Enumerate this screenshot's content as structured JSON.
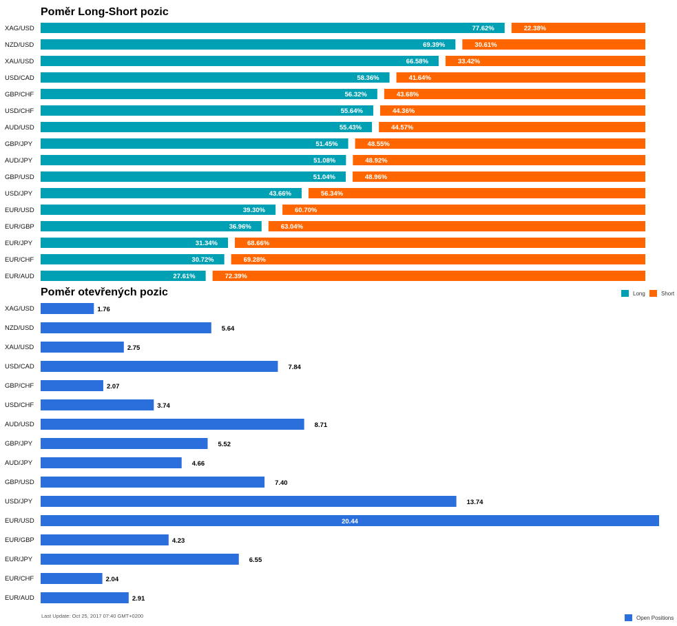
{
  "chart_data": [
    {
      "type": "bar",
      "orientation": "horizontal",
      "stacked": true,
      "title": "Poměr Long-Short pozic",
      "categories": [
        "XAG/USD",
        "NZD/USD",
        "XAU/USD",
        "USD/CAD",
        "GBP/CHF",
        "USD/CHF",
        "AUD/USD",
        "GBP/JPY",
        "AUD/JPY",
        "GBP/USD",
        "USD/JPY",
        "EUR/USD",
        "EUR/GBP",
        "EUR/JPY",
        "EUR/CHF",
        "EUR/AUD"
      ],
      "series": [
        {
          "name": "Long",
          "values": [
            77.62,
            69.39,
            66.58,
            58.36,
            56.32,
            55.64,
            55.43,
            51.45,
            51.08,
            51.04,
            43.66,
            39.3,
            36.96,
            31.34,
            30.72,
            27.61
          ],
          "labels": [
            "77.62%",
            "69.39%",
            "66.58%",
            "58.36%",
            "56.32%",
            "55.64%",
            "55.43%",
            "51.45%",
            "51.08%",
            "51.04%",
            "43.66%",
            "39.30%",
            "36.96%",
            "31.34%",
            "30.72%",
            "27.61%"
          ]
        },
        {
          "name": "Short",
          "values": [
            22.38,
            30.61,
            33.42,
            41.64,
            43.68,
            44.36,
            44.57,
            48.55,
            48.92,
            48.96,
            56.34,
            60.7,
            63.04,
            68.66,
            69.28,
            72.39
          ],
          "labels": [
            "22.38%",
            "30.61%",
            "33.42%",
            "41.64%",
            "43.68%",
            "44.36%",
            "44.57%",
            "48.55%",
            "48.92%",
            "48.96%",
            "56.34%",
            "60.70%",
            "63.04%",
            "68.66%",
            "69.28%",
            "72.39%"
          ]
        }
      ],
      "xlim": [
        0,
        100
      ],
      "grid": false,
      "legend": "bottom-right",
      "colors": {
        "Long": "#00a0b4",
        "Short": "#ff6600"
      }
    },
    {
      "type": "bar",
      "orientation": "horizontal",
      "title": "Poměr otevřených pozic",
      "categories": [
        "XAG/USD",
        "NZD/USD",
        "XAU/USD",
        "USD/CAD",
        "GBP/CHF",
        "USD/CHF",
        "AUD/USD",
        "GBP/JPY",
        "AUD/JPY",
        "GBP/USD",
        "USD/JPY",
        "EUR/USD",
        "EUR/GBP",
        "EUR/JPY",
        "EUR/CHF",
        "EUR/AUD"
      ],
      "series": [
        {
          "name": "Open Positions",
          "values": [
            1.76,
            5.64,
            2.75,
            7.84,
            2.07,
            3.74,
            8.71,
            5.52,
            4.66,
            7.4,
            13.74,
            20.44,
            4.23,
            6.55,
            2.04,
            2.91
          ],
          "labels": [
            "1.76",
            "5.64",
            "2.75",
            "7.84",
            "2.07",
            "3.74",
            "8.71",
            "5.52",
            "4.66",
            "7.40",
            "13.74",
            "20.44",
            "4.23",
            "6.55",
            "2.04",
            "2.91"
          ]
        }
      ],
      "xlim": [
        0,
        20.44
      ],
      "grid": false,
      "legend": "bottom-right",
      "colors": {
        "Open Positions": "#2a6fdb"
      }
    }
  ],
  "legend": {
    "long": "Long",
    "short": "Short",
    "open": "Open Positions"
  },
  "footer": {
    "last_update": "Last Update: Oct 25, 2017 07:40 GMT+0200"
  }
}
